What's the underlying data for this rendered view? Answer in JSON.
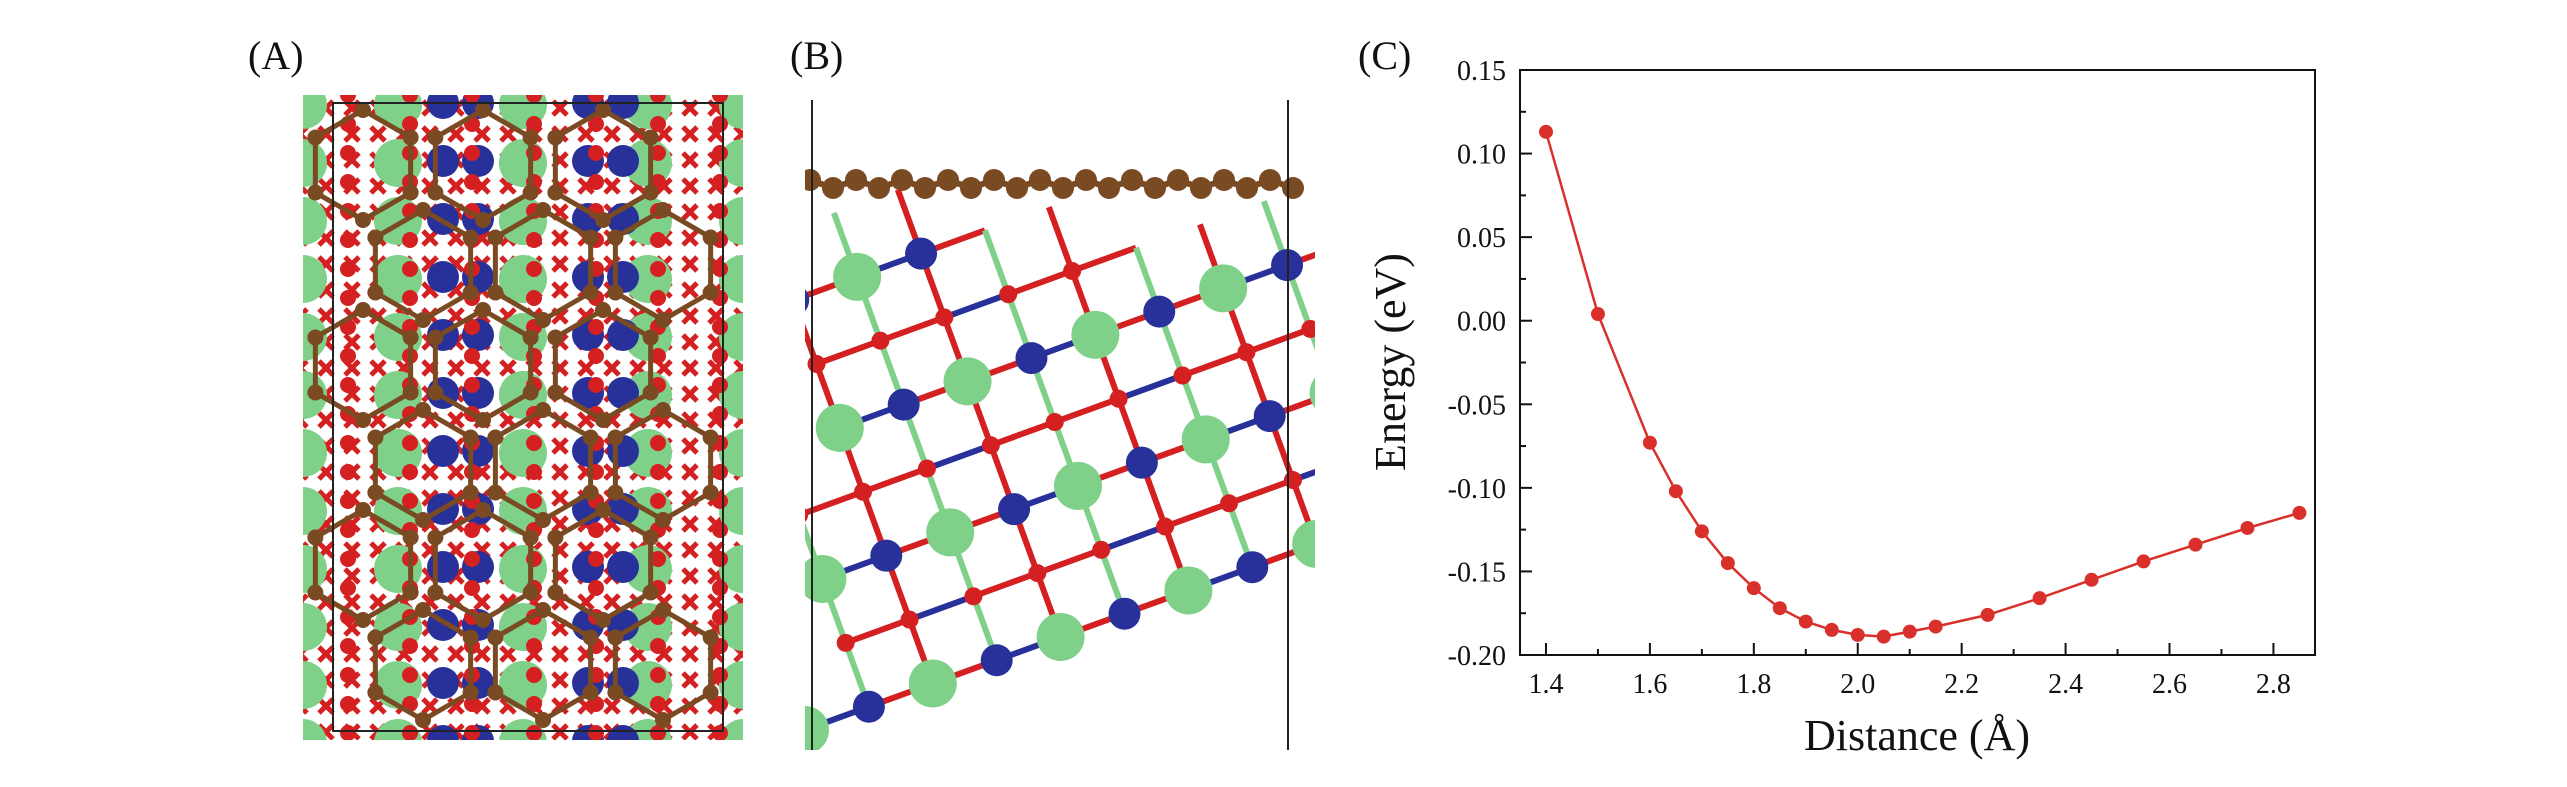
{
  "panels": {
    "a_label": "(A)",
    "b_label": "(B)",
    "c_label": "(C)"
  },
  "colors": {
    "graphene": "#7a4a22",
    "oxygen": "#d42020",
    "cobalt": "#28309a",
    "lanthanide": "#7fd18a",
    "series": "#d9302b"
  },
  "chart_data": {
    "type": "line",
    "xlabel": "Distance (Å)",
    "ylabel": "Energy (eV)",
    "xlim": [
      1.35,
      2.88
    ],
    "ylim": [
      -0.2,
      0.15
    ],
    "xticks": [
      1.4,
      1.6,
      1.8,
      2.0,
      2.2,
      2.4,
      2.6,
      2.8
    ],
    "xtick_labels": [
      "1.4",
      "1.6",
      "1.8",
      "2.0",
      "2.2",
      "2.4",
      "2.6",
      "2.8"
    ],
    "yticks": [
      -0.2,
      -0.15,
      -0.1,
      -0.05,
      0.0,
      0.05,
      0.1,
      0.15
    ],
    "ytick_labels": [
      "-0.20",
      "-0.15",
      "-0.10",
      "-0.05",
      "0.00",
      "0.05",
      "0.10",
      "0.15"
    ],
    "grid": false,
    "series": [
      {
        "x": [
          1.4,
          1.5,
          1.6,
          1.65,
          1.7,
          1.75,
          1.8,
          1.85,
          1.9,
          1.95,
          2.0,
          2.05,
          2.1,
          2.15,
          2.25,
          2.35,
          2.45,
          2.55,
          2.65,
          2.75,
          2.85
        ],
        "y": [
          0.113,
          0.004,
          -0.073,
          -0.102,
          -0.126,
          -0.145,
          -0.16,
          -0.172,
          -0.18,
          -0.185,
          -0.188,
          -0.189,
          -0.186,
          -0.183,
          -0.176,
          -0.166,
          -0.155,
          -0.144,
          -0.134,
          -0.124,
          -0.115
        ]
      }
    ]
  }
}
